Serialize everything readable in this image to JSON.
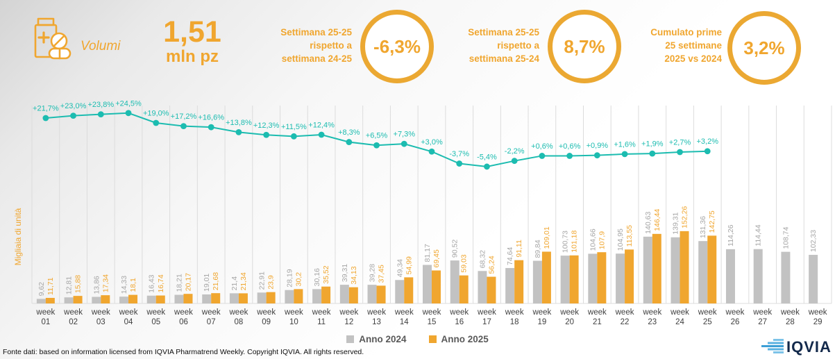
{
  "header": {
    "icon_label": "Volumi",
    "big_value": "1,51",
    "big_unit": "mln pz",
    "kpis": [
      {
        "label": "Settimana 25-25\nrispetto a\nsettimana 24-25",
        "value": "-6,3%"
      },
      {
        "label": "Settimana 25-25\nrispetto a\nsettimana 25-24",
        "value": "8,7%"
      },
      {
        "label": "Cumulato prime\n25 settimane\n2025 vs 2024",
        "value": "3,2%"
      }
    ]
  },
  "colors": {
    "accent_orange": "#F0A62F",
    "ring_orange": "#EBA832",
    "teal": "#1CBCB0",
    "gray_bar": "#C2C2C2",
    "gray_bar_label": "#A6A6A6",
    "axis_text": "#3F3F3F",
    "grid": "#DCDCDC",
    "navy": "#13294B",
    "logo_blue": "#4FA8DC"
  },
  "chart_data": {
    "type": "bar",
    "title": "",
    "xlabel": "",
    "ylabel": "Migliaia di unità",
    "ylim": [
      0,
      160
    ],
    "grid": "vertical-only",
    "legend_position": "bottom-center",
    "categories": [
      "week 01",
      "week 02",
      "week 03",
      "week 04",
      "week 05",
      "week 06",
      "week 07",
      "week 08",
      "week 09",
      "week 10",
      "week 11",
      "week 12",
      "week 13",
      "week 14",
      "week 15",
      "week 16",
      "week 17",
      "week 18",
      "week 19",
      "week 20",
      "week 21",
      "week 22",
      "week 23",
      "week 24",
      "week 25",
      "week 26",
      "week 27",
      "week 28",
      "week 29"
    ],
    "series": [
      {
        "name": "Anno 2024",
        "color": "#C2C2C2",
        "label_color": "#A6A6A6",
        "values": [
          9.62,
          12.81,
          13.86,
          14.33,
          16.43,
          18.21,
          19.01,
          21.4,
          22.91,
          28.19,
          30.16,
          39.31,
          39.28,
          49.34,
          81.17,
          90.52,
          68.32,
          74.64,
          89.84,
          100.73,
          104.66,
          104.95,
          140.63,
          139.31,
          131.36,
          114.26,
          114.44,
          108.74,
          102.33
        ],
        "labels": [
          "9,62",
          "12,81",
          "13,86",
          "14,33",
          "16,43",
          "18,21",
          "19,01",
          "21,4",
          "22,91",
          "28,19",
          "30,16",
          "39,31",
          "39,28",
          "49,34",
          "81,17",
          "90,52",
          "68,32",
          "74,64",
          "89,84",
          "100,73",
          "104,66",
          "104,95",
          "140,63",
          "139,31",
          "131,36",
          "114,26",
          "114,44",
          "108,74",
          "102,33"
        ]
      },
      {
        "name": "Anno 2025",
        "color": "#F0A62F",
        "label_color": "#F0A62F",
        "values": [
          11.71,
          15.88,
          17.34,
          18.1,
          16.74,
          20.17,
          21.68,
          21.34,
          23.9,
          30.2,
          35.52,
          34.13,
          37.45,
          54.99,
          69.45,
          59.03,
          56.24,
          91.11,
          109.01,
          101.18,
          107.9,
          113.55,
          146.44,
          152.26,
          142.75,
          null,
          null,
          null,
          null
        ],
        "labels": [
          "11,71",
          "15,88",
          "17,34",
          "18,1",
          "16,74",
          "20,17",
          "21,68",
          "21,34",
          "23,9",
          "30,2",
          "35,52",
          "34,13",
          "37,45",
          "54,99",
          "69,45",
          "59,03",
          "56,24",
          "91,11",
          "109,01",
          "101,18",
          "107,9",
          "113,55",
          "146,44",
          "152,26",
          "142,75",
          null,
          null,
          null,
          null
        ]
      }
    ],
    "line": {
      "name": "Delta % 2025 vs 2024",
      "color": "#1CBCB0",
      "values": [
        21.7,
        23.0,
        23.8,
        24.5,
        19.0,
        17.2,
        16.6,
        13.8,
        12.3,
        11.5,
        12.4,
        8.3,
        6.5,
        7.3,
        3.0,
        -3.7,
        -5.4,
        -2.2,
        0.6,
        0.6,
        0.9,
        1.6,
        1.9,
        2.7,
        3.2
      ],
      "labels": [
        "+21,7%",
        "+23,0%",
        "+23,8%",
        "+24,5%",
        "+19,0%",
        "+17,2%",
        "+16,6%",
        "+13,8%",
        "+12,3%",
        "+11,5%",
        "+12,4%",
        "+8,3%",
        "+6,5%",
        "+7,3%",
        "+3,0%",
        "-3,7%",
        "-5,4%",
        "-2,2%",
        "+0,6%",
        "+0,6%",
        "+0,9%",
        "+1,6%",
        "+1,9%",
        "+2,7%",
        "+3,2%"
      ]
    }
  },
  "legend": [
    {
      "label": "Anno 2024",
      "color": "#C2C2C2"
    },
    {
      "label": "Anno 2025",
      "color": "#F0A62F"
    }
  ],
  "footer": {
    "source": "Fonte dati: based on information licensed from IQVIA Pharmatrend Weekly. Copyright IQVIA. All rights reserved.",
    "logo": "IQVIA"
  }
}
